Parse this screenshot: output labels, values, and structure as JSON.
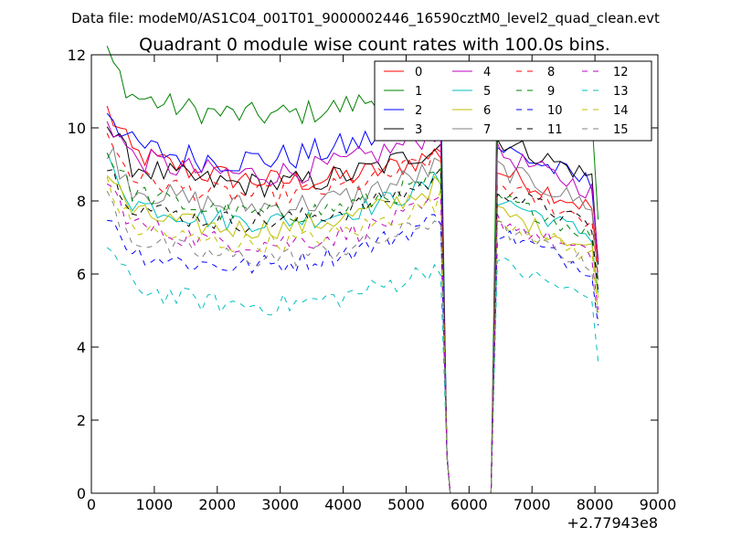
{
  "chart_data": {
    "type": "line",
    "suptitle": "Data file: modeM0/AS1C04_001T01_9000002446_16590cztM0_level2_quad_clean.evt",
    "title": "Quadrant 0 module wise count rates with 100.0s bins.",
    "xlabel": "",
    "ylabel": "",
    "x_offset_label": "+2.77943e8",
    "xlim": [
      0,
      9000
    ],
    "ylim": [
      0,
      12
    ],
    "x_ticks": [
      0,
      1000,
      2000,
      3000,
      4000,
      5000,
      6000,
      7000,
      8000,
      9000
    ],
    "y_ticks": [
      0,
      2,
      4,
      6,
      8,
      10,
      12
    ],
    "grid": false,
    "legend": {
      "placement": "top-right",
      "columns": 4
    },
    "segments": [
      {
        "x_start": 250,
        "x_step": 100,
        "count": 54
      },
      {
        "x_start": 6350,
        "x_step": 100,
        "count": 18
      }
    ],
    "series": [
      {
        "name": "0",
        "color": "#ff0000",
        "dash": "solid",
        "base": 8.7,
        "amp": 0.35,
        "trend": -0.2,
        "level2": 0.92
      },
      {
        "name": "1",
        "color": "#008000",
        "dash": "solid",
        "base": 10.5,
        "amp": 0.35,
        "trend": 0.1,
        "level2": 1.0
      },
      {
        "name": "2",
        "color": "#0000ff",
        "dash": "solid",
        "base": 9.3,
        "amp": 0.4,
        "trend": 0.3,
        "level2": 0.93
      },
      {
        "name": "3",
        "color": "#000000",
        "dash": "solid",
        "base": 8.6,
        "amp": 0.35,
        "trend": 0.1,
        "level2": 1.02
      },
      {
        "name": "4",
        "color": "#bf00bf",
        "dash": "solid",
        "base": 8.9,
        "amp": 0.35,
        "trend": 0.2,
        "level2": 0.95
      },
      {
        "name": "5",
        "color": "#00bfbf",
        "dash": "solid",
        "base": 7.6,
        "amp": 0.3,
        "trend": 0.1,
        "level2": 0.95
      },
      {
        "name": "6",
        "color": "#bfbf00",
        "dash": "solid",
        "base": 7.4,
        "amp": 0.3,
        "trend": 0.2,
        "level2": 0.93
      },
      {
        "name": "7",
        "color": "#808080",
        "dash": "solid",
        "base": 8.0,
        "amp": 0.35,
        "trend": 0.1,
        "level2": 1.0
      },
      {
        "name": "8",
        "color": "#ff0000",
        "dash": "dashed",
        "base": 8.3,
        "amp": 0.3,
        "trend": 0.1,
        "level2": 0.92
      },
      {
        "name": "9",
        "color": "#008000",
        "dash": "dashed",
        "base": 7.8,
        "amp": 0.3,
        "trend": 0.0,
        "level2": 0.93
      },
      {
        "name": "10",
        "color": "#0000ff",
        "dash": "dashed",
        "base": 6.4,
        "amp": 0.3,
        "trend": 0.3,
        "level2": 0.98
      },
      {
        "name": "11",
        "color": "#000000",
        "dash": "dashed",
        "base": 7.6,
        "amp": 0.3,
        "trend": 0.2,
        "level2": 0.98
      },
      {
        "name": "12",
        "color": "#bf00bf",
        "dash": "dashed",
        "base": 7.0,
        "amp": 0.3,
        "trend": 0.1,
        "level2": 0.95
      },
      {
        "name": "13",
        "color": "#00bfbf",
        "dash": "dashed",
        "base": 5.3,
        "amp": 0.3,
        "trend": 0.1,
        "level2": 1.02
      },
      {
        "name": "14",
        "color": "#bfbf00",
        "dash": "dashed",
        "base": 7.0,
        "amp": 0.3,
        "trend": 0.2,
        "level2": 0.95
      },
      {
        "name": "15",
        "color": "#808080",
        "dash": "dashed",
        "base": 6.6,
        "amp": 0.3,
        "trend": 0.1,
        "level2": 0.97
      }
    ]
  }
}
